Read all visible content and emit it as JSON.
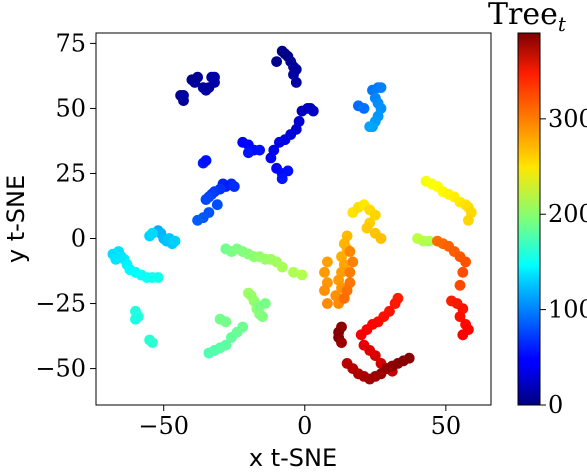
{
  "chart_data": {
    "type": "scatter",
    "xlabel": "x t-SNE",
    "ylabel": "y t-SNE",
    "xlim": [
      -74,
      66
    ],
    "ylim": [
      -64,
      79
    ],
    "xticks": [
      -50,
      0,
      50
    ],
    "xtick_labels": [
      "−50",
      "0",
      "50"
    ],
    "yticks": [
      -50,
      -25,
      0,
      25,
      50,
      75
    ],
    "ytick_labels": [
      "−50",
      "−25",
      "0",
      "25",
      "50",
      "75"
    ],
    "grid": false,
    "colorbar": {
      "title": "Tree",
      "title_subscript": "t",
      "colormap": "jet",
      "range": [
        0,
        390
      ],
      "ticks": [
        0,
        100,
        200,
        300
      ],
      "tick_labels": [
        "0",
        "100",
        "200",
        "300"
      ]
    },
    "points": [
      [
        -44,
        55,
        5
      ],
      [
        -43,
        53,
        8
      ],
      [
        -43,
        55,
        12
      ],
      [
        -40,
        61,
        6
      ],
      [
        -39,
        60,
        9
      ],
      [
        -38,
        62,
        7
      ],
      [
        -36,
        58,
        10
      ],
      [
        -35,
        57,
        14
      ],
      [
        -34,
        58,
        11
      ],
      [
        -33,
        62,
        13
      ],
      [
        -32,
        62,
        15
      ],
      [
        -32,
        60,
        16
      ],
      [
        -10,
        68,
        4
      ],
      [
        -8,
        72,
        2
      ],
      [
        -7,
        71,
        6
      ],
      [
        -6,
        70,
        3
      ],
      [
        -5,
        68,
        9
      ],
      [
        -4,
        66,
        10
      ],
      [
        -3,
        65,
        12
      ],
      [
        -4,
        63,
        11
      ],
      [
        -3,
        60,
        14
      ],
      [
        -1,
        49,
        24
      ],
      [
        1,
        50,
        22
      ],
      [
        2,
        50,
        26
      ],
      [
        3,
        49,
        28
      ],
      [
        -2,
        45,
        30
      ],
      [
        -3,
        42,
        32
      ],
      [
        -5,
        40,
        35
      ],
      [
        -7,
        38,
        38
      ],
      [
        -9,
        37,
        40
      ],
      [
        -11,
        34,
        44
      ],
      [
        -12,
        31,
        46
      ],
      [
        -22,
        37,
        48
      ],
      [
        -20,
        36,
        50
      ],
      [
        -18,
        34,
        52
      ],
      [
        -16,
        34,
        54
      ],
      [
        -20,
        33,
        56
      ],
      [
        -36,
        29,
        58
      ],
      [
        -35,
        30,
        55
      ],
      [
        -29,
        21,
        62
      ],
      [
        -26,
        21,
        64
      ],
      [
        -28,
        20,
        60
      ],
      [
        -25,
        20,
        66
      ],
      [
        -30,
        19,
        68
      ],
      [
        -32,
        18,
        70
      ],
      [
        -33,
        17,
        72
      ],
      [
        -34,
        16,
        74
      ],
      [
        -35,
        15,
        76
      ],
      [
        -10,
        27,
        50
      ],
      [
        -8,
        25,
        52
      ],
      [
        -6,
        26,
        54
      ],
      [
        -8,
        23,
        56
      ],
      [
        -31,
        13,
        78
      ],
      [
        -34,
        10,
        80
      ],
      [
        -36,
        8,
        82
      ],
      [
        -38,
        7,
        84
      ],
      [
        19,
        51,
        90
      ],
      [
        21,
        50,
        92
      ],
      [
        24,
        57,
        94
      ],
      [
        26,
        58,
        96
      ],
      [
        27,
        58,
        98
      ],
      [
        25,
        54,
        100
      ],
      [
        26,
        52,
        102
      ],
      [
        27,
        50,
        104
      ],
      [
        26,
        47,
        106
      ],
      [
        25,
        45,
        108
      ],
      [
        24,
        43,
        110
      ],
      [
        23,
        43,
        112
      ],
      [
        -52,
        3,
        115
      ],
      [
        -51,
        2,
        118
      ],
      [
        -50,
        0,
        120
      ],
      [
        -49,
        -1,
        122
      ],
      [
        -48,
        0,
        124
      ],
      [
        -47,
        -2,
        126
      ],
      [
        -46,
        -1,
        128
      ],
      [
        -55,
        1,
        130
      ],
      [
        -54,
        2,
        132
      ],
      [
        -68,
        -6,
        134
      ],
      [
        -67,
        -8,
        136
      ],
      [
        -66,
        -7,
        138
      ],
      [
        -64,
        -8,
        140
      ],
      [
        -63,
        -10,
        142
      ],
      [
        -62,
        -12,
        144
      ],
      [
        -60,
        -13,
        146
      ],
      [
        -58,
        -14,
        148
      ],
      [
        -56,
        -15,
        150
      ],
      [
        -54,
        -15,
        152
      ],
      [
        -52,
        -15,
        154
      ],
      [
        -66,
        -5,
        135
      ],
      [
        -65,
        -7,
        137
      ],
      [
        -60,
        -28,
        158
      ],
      [
        -59,
        -30,
        160
      ],
      [
        -60,
        -31,
        156
      ],
      [
        -55,
        -39,
        162
      ],
      [
        -54,
        -40,
        164
      ],
      [
        -28,
        -4,
        190
      ],
      [
        -26,
        -5,
        192
      ],
      [
        -24,
        -4,
        194
      ],
      [
        -22,
        -5,
        196
      ],
      [
        -20,
        -6,
        198
      ],
      [
        -18,
        -7,
        200
      ],
      [
        -16,
        -7,
        202
      ],
      [
        -14,
        -8,
        204
      ],
      [
        -12,
        -8,
        206
      ],
      [
        -10,
        -9,
        208
      ],
      [
        -8,
        -11,
        210
      ],
      [
        -4,
        -13,
        212
      ],
      [
        -1,
        -14,
        214
      ],
      [
        -20,
        -21,
        206
      ],
      [
        -19,
        -22,
        204
      ],
      [
        -18,
        -24,
        202
      ],
      [
        -17,
        -27,
        200
      ],
      [
        -16,
        -29,
        198
      ],
      [
        -15,
        -30,
        196
      ],
      [
        -16,
        -26,
        194
      ],
      [
        -14,
        -25,
        192
      ],
      [
        -34,
        -44,
        176
      ],
      [
        -32,
        -43,
        178
      ],
      [
        -30,
        -42,
        180
      ],
      [
        -28,
        -41,
        182
      ],
      [
        -26,
        -38,
        184
      ],
      [
        -24,
        -36,
        186
      ],
      [
        -22,
        -34,
        188
      ],
      [
        -30,
        -31,
        190
      ],
      [
        -28,
        -32,
        191
      ],
      [
        17,
        10,
        254
      ],
      [
        19,
        12,
        256
      ],
      [
        21,
        13,
        252
      ],
      [
        23,
        11,
        258
      ],
      [
        25,
        9,
        260
      ],
      [
        23,
        6,
        262
      ],
      [
        22,
        4,
        264
      ],
      [
        25,
        2,
        266
      ],
      [
        27,
        0,
        268
      ],
      [
        15,
        1,
        270
      ],
      [
        14,
        -2,
        272
      ],
      [
        15,
        -4,
        274
      ],
      [
        13,
        -7,
        276
      ],
      [
        14,
        -10,
        278
      ],
      [
        13,
        -13,
        280
      ],
      [
        12,
        -16,
        282
      ],
      [
        13,
        -19,
        284
      ],
      [
        11,
        -22,
        286
      ],
      [
        12,
        -25,
        288
      ],
      [
        16,
        -5,
        290
      ],
      [
        17,
        -9,
        292
      ],
      [
        16,
        -13,
        294
      ],
      [
        16,
        -17,
        296
      ],
      [
        15,
        -20,
        298
      ],
      [
        14,
        -23,
        300
      ],
      [
        8,
        -9,
        280
      ],
      [
        7,
        -13,
        282
      ],
      [
        8,
        -17,
        284
      ],
      [
        7,
        -20,
        286
      ],
      [
        8,
        -25,
        288
      ],
      [
        43,
        22,
        240
      ],
      [
        45,
        21,
        242
      ],
      [
        47,
        20,
        244
      ],
      [
        49,
        18,
        246
      ],
      [
        51,
        17,
        248
      ],
      [
        53,
        16,
        250
      ],
      [
        55,
        14,
        252
      ],
      [
        57,
        13,
        254
      ],
      [
        58,
        12,
        256
      ],
      [
        59,
        10,
        258
      ],
      [
        58,
        7,
        260
      ],
      [
        40,
        0,
        218
      ],
      [
        42,
        -1,
        216
      ],
      [
        44,
        -1,
        214
      ],
      [
        47,
        -1,
        300
      ],
      [
        49,
        -2,
        302
      ],
      [
        51,
        -3,
        304
      ],
      [
        53,
        -5,
        306
      ],
      [
        55,
        -7,
        308
      ],
      [
        57,
        -9,
        310
      ],
      [
        56,
        -13,
        312
      ],
      [
        55,
        -18,
        314
      ],
      [
        52,
        -24,
        330
      ],
      [
        54,
        -25,
        332
      ],
      [
        56,
        -27,
        334
      ],
      [
        55,
        -30,
        336
      ],
      [
        57,
        -33,
        338
      ],
      [
        58,
        -35,
        340
      ],
      [
        56,
        -37,
        342
      ],
      [
        33,
        -23,
        330
      ],
      [
        32,
        -25,
        332
      ],
      [
        30,
        -28,
        334
      ],
      [
        28,
        -30,
        336
      ],
      [
        26,
        -32,
        338
      ],
      [
        24,
        -33,
        340
      ],
      [
        22,
        -35,
        342
      ],
      [
        20,
        -37,
        344
      ],
      [
        21,
        -41,
        352
      ],
      [
        23,
        -43,
        354
      ],
      [
        25,
        -45,
        356
      ],
      [
        27,
        -48,
        358
      ],
      [
        29,
        -50,
        360
      ],
      [
        31,
        -51,
        362
      ],
      [
        15,
        -48,
        368
      ],
      [
        17,
        -50,
        370
      ],
      [
        19,
        -52,
        372
      ],
      [
        21,
        -53,
        374
      ],
      [
        23,
        -54,
        376
      ],
      [
        25,
        -53,
        378
      ],
      [
        27,
        -52,
        380
      ],
      [
        29,
        -50,
        382
      ],
      [
        31,
        -49,
        384
      ],
      [
        33,
        -48,
        386
      ],
      [
        35,
        -47,
        388
      ],
      [
        37,
        -46,
        386
      ],
      [
        12,
        -38,
        390
      ],
      [
        12,
        -36,
        388
      ],
      [
        13,
        -34,
        385
      ],
      [
        13,
        -40,
        380
      ]
    ]
  }
}
